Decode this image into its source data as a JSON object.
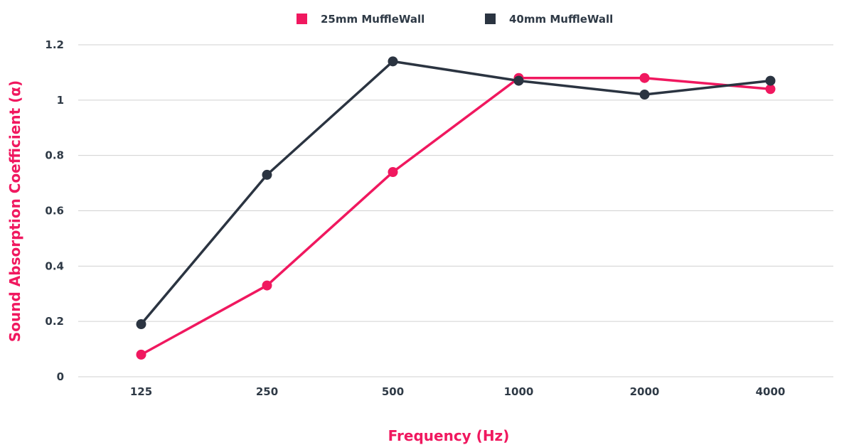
{
  "chart_data": {
    "type": "line",
    "xlabel": "Frequency (Hz)",
    "ylabel": "Sound Absorption Coefficient (α)",
    "categories": [
      "125",
      "250",
      "500",
      "1000",
      "2000",
      "4000"
    ],
    "y_ticks": [
      "0",
      "0.2",
      "0.4",
      "0.6",
      "0.8",
      "1",
      "1.2"
    ],
    "ylim": [
      0,
      1.2
    ],
    "grid": true,
    "legend_position": "top-center",
    "series": [
      {
        "name": "25mm MuffleWall",
        "color": "#f0185f",
        "values": [
          0.08,
          0.33,
          0.74,
          1.08,
          1.08,
          1.04
        ]
      },
      {
        "name": "40mm MuffleWall",
        "color": "#2b3441",
        "values": [
          0.19,
          0.73,
          1.14,
          1.07,
          1.02,
          1.07
        ]
      }
    ],
    "axis_title_color": "#f0185f"
  }
}
